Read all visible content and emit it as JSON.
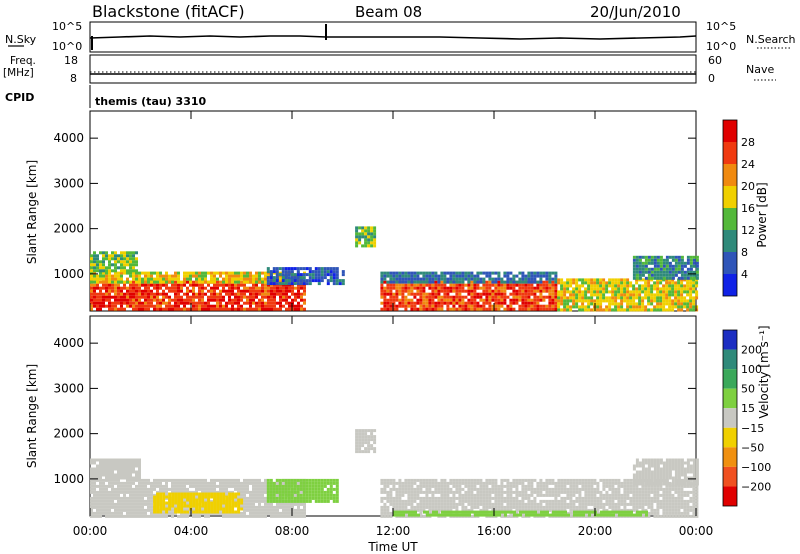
{
  "header": {
    "station": "Blackstone (fitACF)",
    "beam": "Beam 08",
    "date": "20/Jun/2010"
  },
  "summary_panels": {
    "nsky_label": "N.Sky",
    "nsky_ticks": [
      "10^5",
      "10^0"
    ],
    "nsearch_label": "N.Search",
    "nsearch_ticks": [
      "10^5",
      "10^0"
    ],
    "freq_label": "Freq.",
    "freq_unit": "[MHz]",
    "freq_ticks": [
      "18",
      "8"
    ],
    "nave_label": "Nave",
    "nave_ticks": [
      "60",
      "0"
    ],
    "cpid_label": "CPID",
    "cpid_value": "themis (tau) 3310"
  },
  "chart_data": [
    {
      "type": "heatmap",
      "title": "",
      "xlabel": "",
      "ylabel": "Slant Range [km]",
      "x_ticks": [
        "00:00",
        "04:00",
        "08:00",
        "12:00",
        "16:00",
        "20:00",
        "00:00"
      ],
      "xlim_hours": [
        0,
        24
      ],
      "y_ticks": [
        1000,
        2000,
        3000,
        4000
      ],
      "ylim": [
        180,
        4600
      ],
      "colorbar": {
        "label": "Power [dB]",
        "ticks": [
          "4",
          "8",
          "12",
          "16",
          "20",
          "24",
          "28"
        ],
        "bins": [
          {
            "lo": 0,
            "hi": 4,
            "color": "#1022e6"
          },
          {
            "lo": 4,
            "hi": 8,
            "color": "#2f55b8"
          },
          {
            "lo": 8,
            "hi": 12,
            "color": "#2f8a7a"
          },
          {
            "lo": 12,
            "hi": 16,
            "color": "#53b83a"
          },
          {
            "lo": 16,
            "hi": 20,
            "color": "#f0d000"
          },
          {
            "lo": 20,
            "hi": 24,
            "color": "#f08a10"
          },
          {
            "lo": 24,
            "hi": 28,
            "color": "#f03a10"
          },
          {
            "lo": 28,
            "hi": 32,
            "color": "#e00000"
          }
        ]
      },
      "regions": [
        {
          "t0": 0.0,
          "t1": 8.5,
          "r0": 200,
          "r1": 850,
          "value": 27
        },
        {
          "t0": 0.0,
          "t1": 8.5,
          "r0": 850,
          "r1": 1050,
          "value": 18
        },
        {
          "t0": 0.0,
          "t1": 1.8,
          "r0": 1050,
          "r1": 1500,
          "value": 14
        },
        {
          "t0": 7.0,
          "t1": 10.0,
          "r0": 800,
          "r1": 1150,
          "value": 6
        },
        {
          "t0": 11.5,
          "t1": 18.5,
          "r0": 200,
          "r1": 850,
          "value": 26
        },
        {
          "t0": 11.5,
          "t1": 18.5,
          "r0": 850,
          "r1": 1050,
          "value": 8
        },
        {
          "t0": 18.5,
          "t1": 24.0,
          "r0": 200,
          "r1": 900,
          "value": 18
        },
        {
          "t0": 21.5,
          "t1": 24.0,
          "r0": 900,
          "r1": 1400,
          "value": 10
        },
        {
          "t0": 10.5,
          "t1": 11.3,
          "r0": 1600,
          "r1": 2050,
          "value": 14
        }
      ]
    },
    {
      "type": "heatmap",
      "title": "",
      "xlabel": "Time UT",
      "ylabel": "Slant Range [km]",
      "x_ticks": [
        "00:00",
        "04:00",
        "08:00",
        "12:00",
        "16:00",
        "20:00",
        "00:00"
      ],
      "xlim_hours": [
        0,
        24
      ],
      "y_ticks": [
        1000,
        2000,
        3000,
        4000
      ],
      "ylim": [
        180,
        4600
      ],
      "colorbar": {
        "label": "Velocity [m s⁻¹]",
        "ticks": [
          "200",
          "100",
          "50",
          "15",
          "−15",
          "−50",
          "−100",
          "−200"
        ],
        "bins": [
          {
            "lo": 200,
            "hi": 300,
            "color": "#1c2ec2"
          },
          {
            "lo": 100,
            "hi": 200,
            "color": "#2f8a7a"
          },
          {
            "lo": 50,
            "hi": 100,
            "color": "#3aa85a"
          },
          {
            "lo": 15,
            "hi": 50,
            "color": "#7ed040"
          },
          {
            "lo": -15,
            "hi": 15,
            "color": "#c8c8c2"
          },
          {
            "lo": -50,
            "hi": -15,
            "color": "#f0d000"
          },
          {
            "lo": -100,
            "hi": -50,
            "color": "#f09010"
          },
          {
            "lo": -200,
            "hi": -100,
            "color": "#f05020"
          },
          {
            "lo": -300,
            "hi": -200,
            "color": "#e00000"
          }
        ]
      },
      "regions": [
        {
          "t0": 0.0,
          "t1": 8.5,
          "r0": 200,
          "r1": 1000,
          "value": 0
        },
        {
          "t0": 2.5,
          "t1": 6.0,
          "r0": 300,
          "r1": 700,
          "value": -40
        },
        {
          "t0": 0.0,
          "t1": 2.0,
          "r0": 1000,
          "r1": 1450,
          "value": 0
        },
        {
          "t0": 7.0,
          "t1": 9.8,
          "r0": 500,
          "r1": 1000,
          "value": 30
        },
        {
          "t0": 10.5,
          "t1": 11.3,
          "r0": 1600,
          "r1": 2100,
          "value": 0
        },
        {
          "t0": 11.5,
          "t1": 24.0,
          "r0": 200,
          "r1": 1000,
          "value": 0
        },
        {
          "t0": 21.5,
          "t1": 24.0,
          "r0": 900,
          "r1": 1450,
          "value": 0
        },
        {
          "t0": 12.0,
          "t1": 22.0,
          "r0": 200,
          "r1": 300,
          "value": 30
        }
      ]
    }
  ]
}
